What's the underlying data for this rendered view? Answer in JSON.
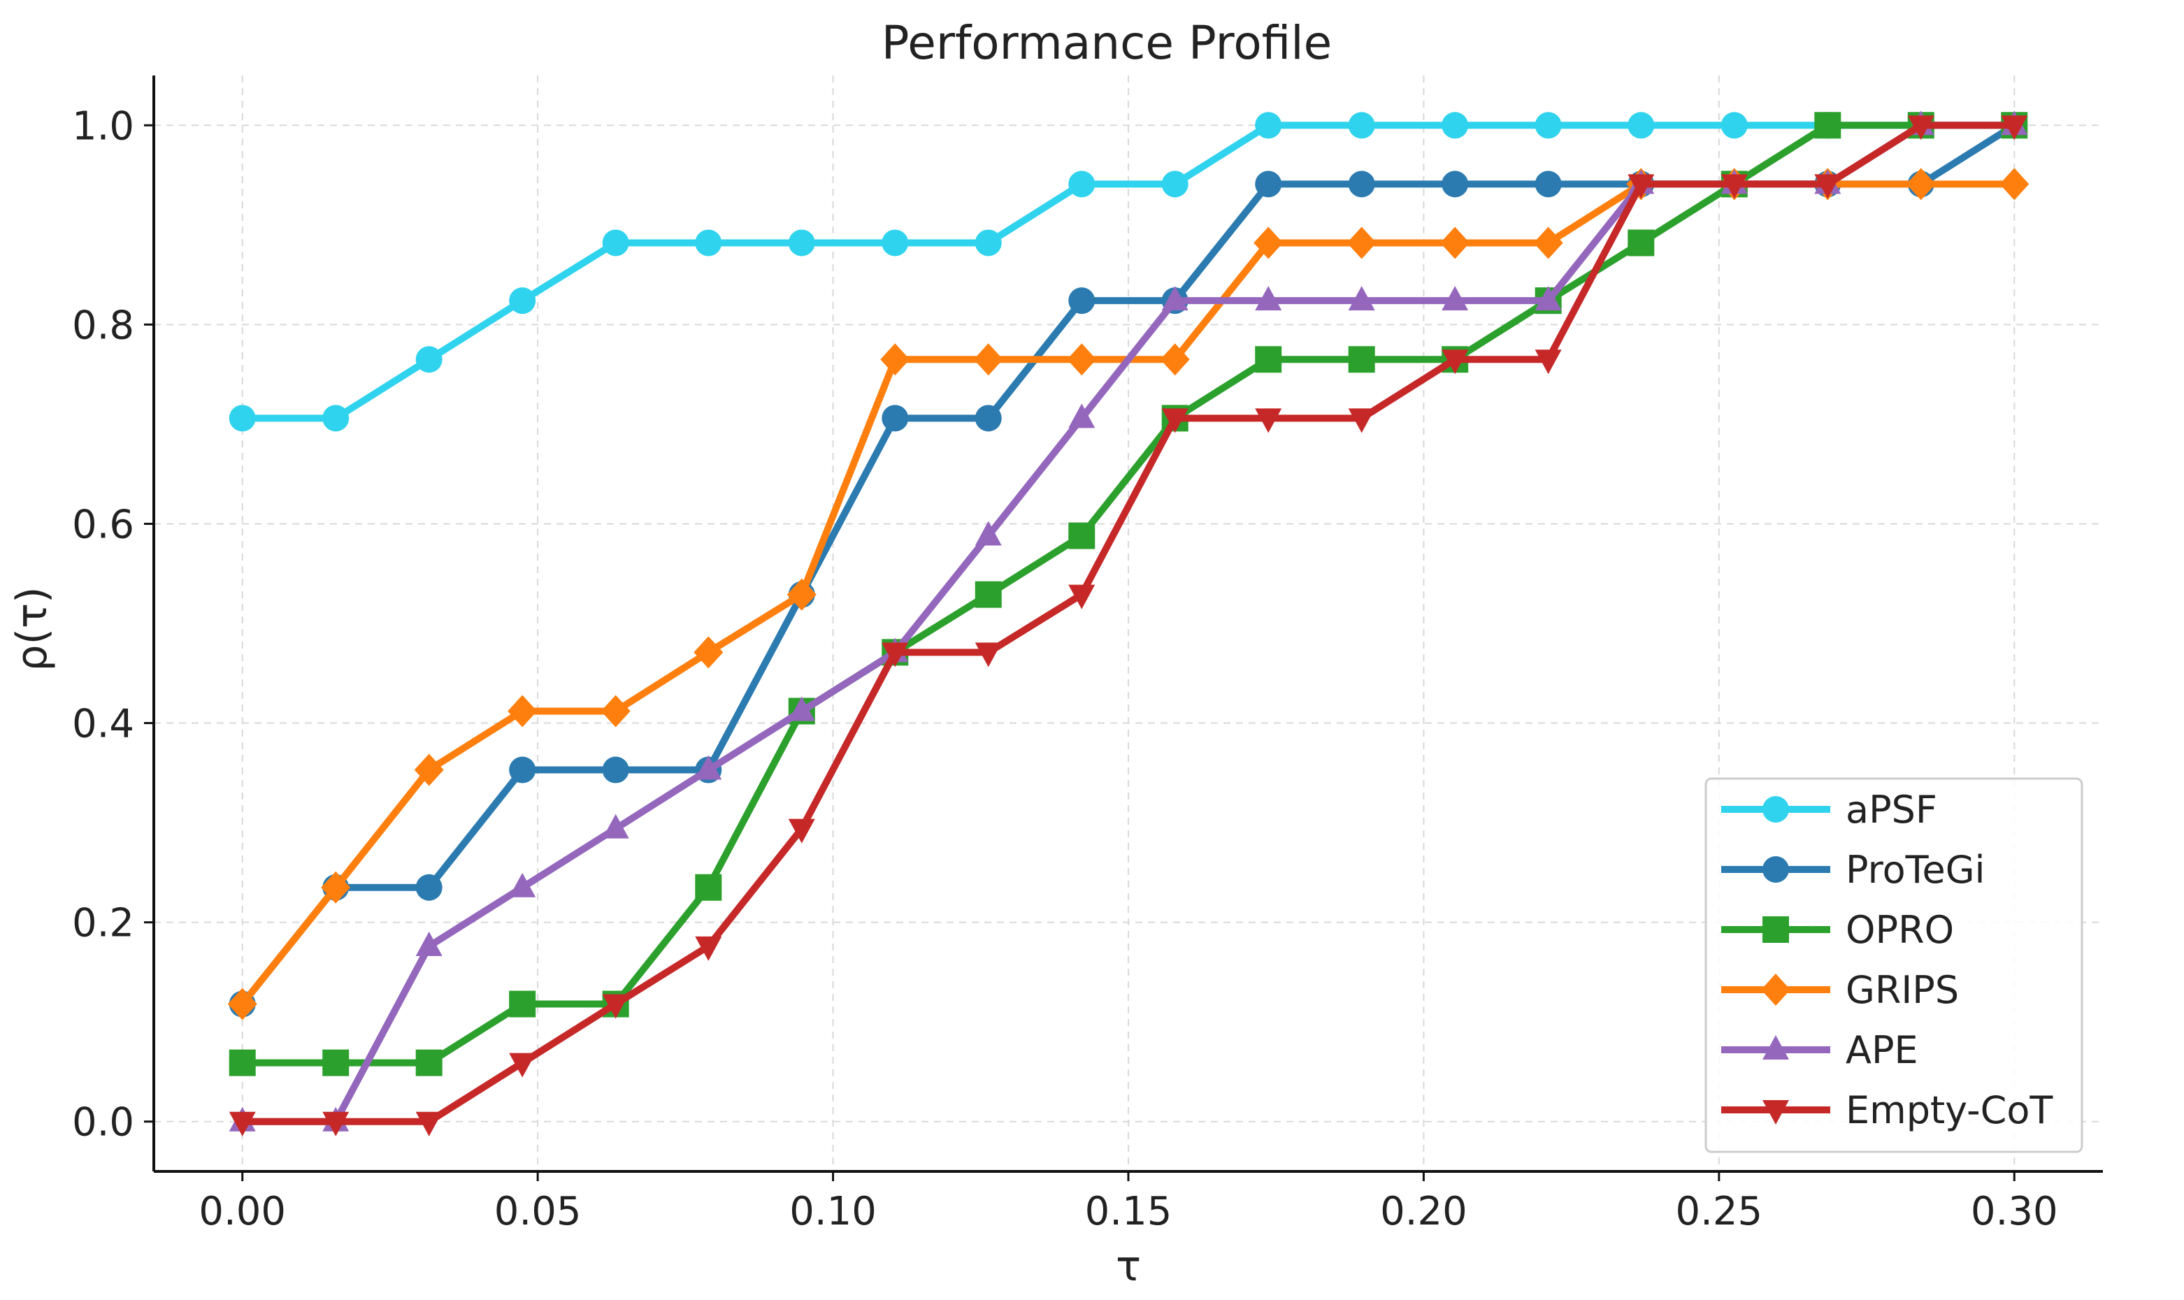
{
  "chart_data": {
    "type": "line",
    "title": "Performance Profile",
    "xlabel": "τ",
    "ylabel": "ρ(τ)",
    "xlim": [
      -0.015,
      0.315
    ],
    "ylim": [
      -0.05,
      1.05
    ],
    "xticks": [
      0.0,
      0.05,
      0.1,
      0.15,
      0.2,
      0.25,
      0.3
    ],
    "xtick_labels": [
      "0.00",
      "0.05",
      "0.10",
      "0.15",
      "0.20",
      "0.25",
      "0.30"
    ],
    "yticks": [
      0.0,
      0.2,
      0.4,
      0.6,
      0.8,
      1.0
    ],
    "ytick_labels": [
      "0.0",
      "0.2",
      "0.4",
      "0.6",
      "0.8",
      "1.0"
    ],
    "grid": true,
    "legend_position": "lower-right",
    "x": [
      0.0,
      0.0158,
      0.0316,
      0.0474,
      0.0632,
      0.0789,
      0.0947,
      0.1105,
      0.1263,
      0.1421,
      0.1579,
      0.1737,
      0.1895,
      0.2053,
      0.2211,
      0.2368,
      0.2526,
      0.2684,
      0.2842,
      0.3
    ],
    "series": [
      {
        "name": "aPSF",
        "color": "#2fd3ee",
        "marker": "circle",
        "values": [
          0.706,
          0.706,
          0.765,
          0.824,
          0.882,
          0.882,
          0.882,
          0.882,
          0.882,
          0.941,
          0.941,
          1.0,
          1.0,
          1.0,
          1.0,
          1.0,
          1.0,
          1.0,
          1.0,
          1.0
        ]
      },
      {
        "name": "ProTeGi",
        "color": "#2b7bb0",
        "marker": "circle",
        "values": [
          0.118,
          0.235,
          0.235,
          0.353,
          0.353,
          0.353,
          0.529,
          0.706,
          0.706,
          0.824,
          0.824,
          0.941,
          0.941,
          0.941,
          0.941,
          0.941,
          0.941,
          0.941,
          0.941,
          1.0
        ]
      },
      {
        "name": "OPRO",
        "color": "#2ca02c",
        "marker": "square",
        "values": [
          0.059,
          0.059,
          0.059,
          0.118,
          0.118,
          0.235,
          0.412,
          0.471,
          0.529,
          0.588,
          0.706,
          0.765,
          0.765,
          0.765,
          0.824,
          0.882,
          0.941,
          1.0,
          1.0,
          1.0
        ]
      },
      {
        "name": "GRIPS",
        "color": "#ff7f0e",
        "marker": "diamond",
        "values": [
          0.118,
          0.235,
          0.353,
          0.412,
          0.412,
          0.471,
          0.529,
          0.765,
          0.765,
          0.765,
          0.765,
          0.882,
          0.882,
          0.882,
          0.882,
          0.941,
          0.941,
          0.941,
          0.941,
          0.941
        ]
      },
      {
        "name": "APE",
        "color": "#9467bd",
        "marker": "triangle-up",
        "values": [
          0.0,
          0.0,
          0.176,
          0.235,
          0.294,
          0.353,
          0.412,
          0.471,
          0.588,
          0.706,
          0.824,
          0.824,
          0.824,
          0.824,
          0.824,
          0.941,
          0.941,
          0.941,
          1.0,
          1.0
        ]
      },
      {
        "name": "Empty-CoT",
        "color": "#c62828",
        "marker": "triangle-down",
        "values": [
          0.0,
          0.0,
          0.0,
          0.059,
          0.118,
          0.176,
          0.294,
          0.471,
          0.471,
          0.529,
          0.706,
          0.706,
          0.706,
          0.765,
          0.765,
          0.941,
          0.941,
          0.941,
          1.0,
          1.0
        ]
      }
    ]
  }
}
